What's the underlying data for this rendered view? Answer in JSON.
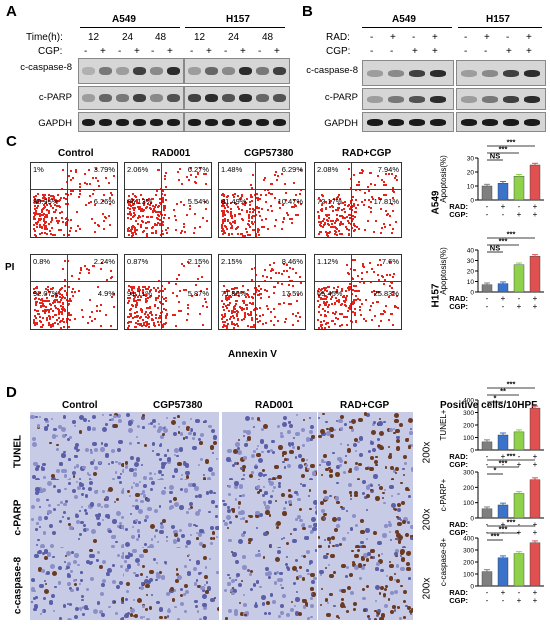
{
  "panels": {
    "A": {
      "letter": "A",
      "lines": [
        "A549",
        "H157"
      ],
      "time_label": "Time(h):",
      "times": [
        "12",
        "24",
        "48"
      ],
      "cgp_label": "CGP:",
      "cgp_marks": [
        "-",
        "+",
        "-",
        "+",
        "-",
        "+",
        "-",
        "+",
        "-",
        "+",
        "-",
        "+"
      ],
      "rows": [
        "c-caspase-8",
        "c-PARP",
        "GAPDH"
      ]
    },
    "B": {
      "letter": "B",
      "lines": [
        "A549",
        "H157"
      ],
      "rad_label": "RAD:",
      "cgp_label": "CGP:",
      "rad_marks": [
        "-",
        "+",
        "-",
        "+",
        "-",
        "+",
        "-",
        "+"
      ],
      "cgp_marks": [
        "-",
        "-",
        "+",
        "+",
        "-",
        "-",
        "+",
        "+"
      ],
      "rows": [
        "c-caspase-8",
        "c-PARP",
        "GAPDH"
      ]
    },
    "C": {
      "letter": "C",
      "columns": [
        "Control",
        "RAD001",
        "CGP57380",
        "RAD+CGP"
      ],
      "y_axis": "PI",
      "x_axis": "Annexin V",
      "rows": [
        {
          "line": "A549",
          "quads": [
            [
              "1%",
              "3.79%",
              "88.95%",
              "6.26%"
            ],
            [
              "2.06%",
              "6.27%",
              "86.13%",
              "5.54%"
            ],
            [
              "1.48%",
              "6.29%",
              "81.49%",
              "10.47%"
            ],
            [
              "2.08%",
              "7.94%",
              "72.17%",
              "17.81%"
            ]
          ]
        },
        {
          "line": "H157",
          "quads": [
            [
              "0.8%",
              "2.24%",
              "92.07%",
              "4.9%"
            ],
            [
              "0.87%",
              "2.15%",
              "91.11%",
              "5.87%"
            ],
            [
              "2.15%",
              "8.46%",
              "71.89%",
              "17.5%"
            ],
            [
              "1.12%",
              "7.6%",
              "65.45%",
              "25.83%"
            ]
          ]
        }
      ]
    },
    "D": {
      "letter": "D",
      "columns": [
        "Control",
        "CGP57380",
        "RAD001",
        "RAD+CGP"
      ],
      "rows": [
        "TUNEL",
        "c-PARP",
        "c-caspase-8"
      ],
      "magnification": "200x",
      "chart_heading": "Positive cells/10HPF"
    }
  },
  "colors": {
    "bar1": "#7f7f7f",
    "bar2": "#3a73c9",
    "bar3": "#8fd14a",
    "bar4": "#e05050"
  },
  "chart_data": [
    {
      "type": "bar",
      "ylabel": "Apoptosis(%)",
      "line": "A549",
      "ylim": [
        0,
        30
      ],
      "yticks": [
        "0",
        "10",
        "20",
        "30"
      ],
      "values": [
        10,
        12,
        17,
        25
      ],
      "rad": [
        "-",
        "+",
        "-",
        "+"
      ],
      "cgp": [
        "-",
        "-",
        "+",
        "+"
      ],
      "sig": [
        {
          "label": "NS",
          "from": 0,
          "to": 1
        },
        {
          "label": "***",
          "from": 0,
          "to": 2
        },
        {
          "label": "***",
          "from": 0,
          "to": 3
        }
      ]
    },
    {
      "type": "bar",
      "ylabel": "Apoptosis(%)",
      "line": "H157",
      "ylim": [
        0,
        40
      ],
      "yticks": [
        "0",
        "10",
        "20",
        "30",
        "40"
      ],
      "values": [
        7,
        8,
        26,
        34
      ],
      "rad": [
        "-",
        "+",
        "-",
        "+"
      ],
      "cgp": [
        "-",
        "-",
        "+",
        "+"
      ],
      "sig": [
        {
          "label": "NS",
          "from": 0,
          "to": 1
        },
        {
          "label": "***",
          "from": 0,
          "to": 2
        },
        {
          "label": "***",
          "from": 0,
          "to": 3
        }
      ]
    },
    {
      "type": "bar",
      "ylabel": "TUNEL+",
      "ylim": [
        0,
        400
      ],
      "yticks": [
        "0",
        "100",
        "200",
        "300",
        "400"
      ],
      "values": [
        65,
        120,
        145,
        335
      ],
      "rad": [
        "-",
        "+",
        "-",
        "+"
      ],
      "cgp": [
        "-",
        "-",
        "+",
        "+"
      ],
      "sig": [
        {
          "label": "*",
          "from": 0,
          "to": 1
        },
        {
          "label": "**",
          "from": 0,
          "to": 2
        },
        {
          "label": "***",
          "from": 0,
          "to": 3
        }
      ]
    },
    {
      "type": "bar",
      "ylabel": "c-PARP+",
      "ylim": [
        0,
        300
      ],
      "yticks": [
        "0",
        "100",
        "200",
        "300"
      ],
      "values": [
        60,
        85,
        160,
        250
      ],
      "rad": [
        "-",
        "+",
        "-",
        "+"
      ],
      "cgp": [
        "-",
        "-",
        "+",
        "+"
      ],
      "sig": [
        {
          "label": "*",
          "from": 0,
          "to": 1
        },
        {
          "label": "***",
          "from": 0,
          "to": 2
        },
        {
          "label": "***",
          "from": 0,
          "to": 3
        }
      ]
    },
    {
      "type": "bar",
      "ylabel": "c-caspase-8+",
      "ylim": [
        0,
        400
      ],
      "yticks": [
        "0",
        "100",
        "200",
        "300",
        "400"
      ],
      "values": [
        120,
        235,
        270,
        360
      ],
      "rad": [
        "-",
        "+",
        "-",
        "+"
      ],
      "cgp": [
        "-",
        "-",
        "+",
        "+"
      ],
      "sig": [
        {
          "label": "***",
          "from": 0,
          "to": 1
        },
        {
          "label": "***",
          "from": 0,
          "to": 2
        },
        {
          "label": "***",
          "from": 0,
          "to": 3
        }
      ]
    }
  ]
}
